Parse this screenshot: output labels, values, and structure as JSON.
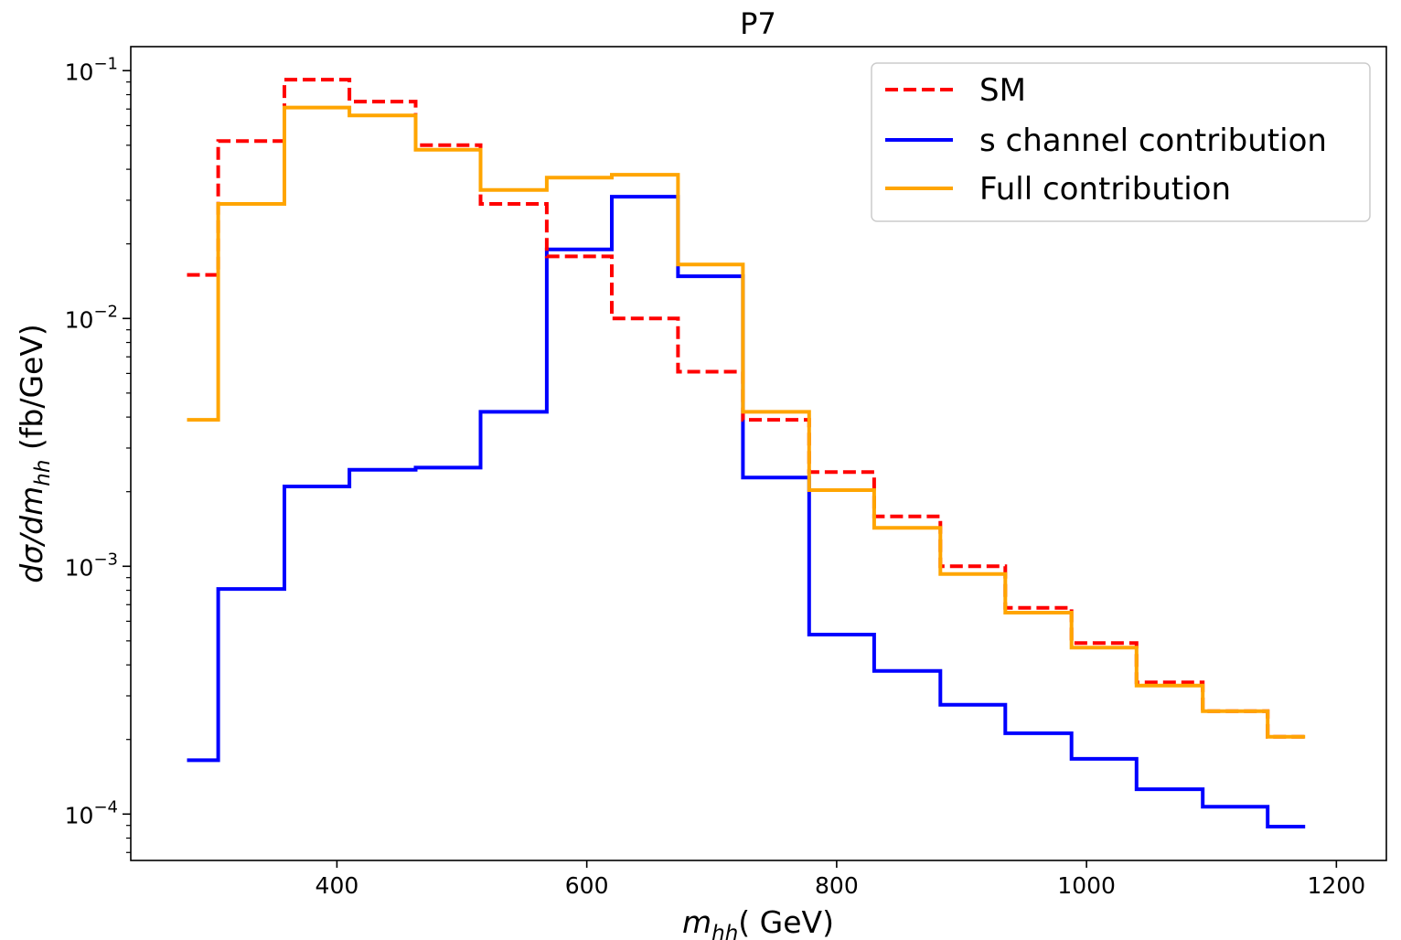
{
  "chart_data": {
    "type": "line",
    "step": "histogram",
    "title": "P7",
    "xlabel": "m_hh( GeV)",
    "xlabel_parts": {
      "var": "m",
      "sub": "hh",
      "rest": "( GeV)"
    },
    "ylabel": "dσ/dm_hh (fb/GeV)",
    "ylabel_parts": {
      "main": "dσ/dm",
      "sub": "hh",
      "rest": " (fb/GeV)"
    },
    "xlim": [
      235,
      1240
    ],
    "ylim": [
      6.5e-05,
      0.125
    ],
    "yscale": "log",
    "xticks": [
      400,
      600,
      800,
      1000,
      1200
    ],
    "xtick_labels": [
      "400",
      "600",
      "800",
      "1000",
      "1200"
    ],
    "yticks": [
      0.1,
      0.01,
      0.001,
      0.0001
    ],
    "ytick_labels": [
      {
        "base": "10",
        "exp": "−1"
      },
      {
        "base": "10",
        "exp": "−2"
      },
      {
        "base": "10",
        "exp": "−3"
      },
      {
        "base": "10",
        "exp": "−4"
      }
    ],
    "grid": false,
    "legend_position": "top-right",
    "bin_edges": [
      280,
      305,
      358,
      410,
      463,
      515,
      568,
      620,
      673,
      725,
      778,
      830,
      883,
      935,
      988,
      1040,
      1093,
      1145,
      1175
    ],
    "series": [
      {
        "name": "SM",
        "color": "#ff0000",
        "dash": "dashed",
        "values": [
          0.015,
          0.052,
          0.092,
          0.075,
          0.05,
          0.029,
          0.0178,
          0.01,
          0.0061,
          0.0039,
          0.0024,
          0.00159,
          0.001,
          0.00068,
          0.00049,
          0.00034,
          0.00026,
          0.000205
        ]
      },
      {
        "name": "s channel contribution",
        "color": "#0000ff",
        "dash": "solid",
        "values": [
          0.000165,
          0.00081,
          0.0021,
          0.00245,
          0.0025,
          0.0042,
          0.019,
          0.031,
          0.0148,
          0.00228,
          0.00053,
          0.000378,
          0.000276,
          0.000212,
          0.000167,
          0.000126,
          0.000107,
          8.9e-05
        ]
      },
      {
        "name": "Full contribution",
        "color": "#ffa500",
        "dash": "solid",
        "values": [
          0.0039,
          0.029,
          0.071,
          0.066,
          0.048,
          0.033,
          0.037,
          0.038,
          0.0165,
          0.0042,
          0.00203,
          0.00143,
          0.00093,
          0.00065,
          0.00047,
          0.00033,
          0.00026,
          0.000205
        ]
      }
    ]
  }
}
